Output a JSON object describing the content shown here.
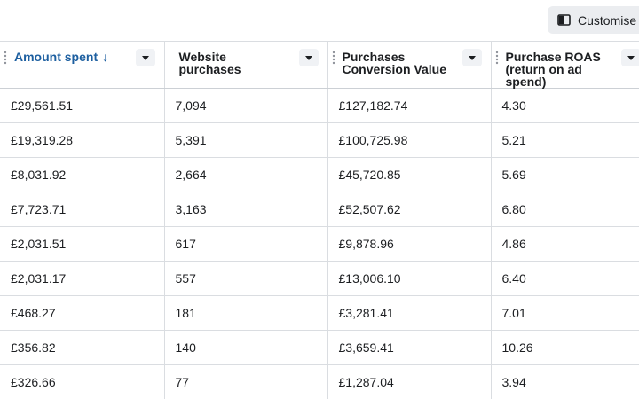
{
  "toolbar": {
    "customise_label": "Customise",
    "customise_icon": "columns-icon"
  },
  "table": {
    "columns": [
      {
        "label": "Amount spent",
        "sort_indicator": "↓",
        "sorted": true
      },
      {
        "label": "Website purchases"
      },
      {
        "label_line1": "Purchases",
        "label_line2": "Conversion Value"
      },
      {
        "label_line1": "Purchase ROAS",
        "label_line2": "(return on ad spend)"
      }
    ],
    "rows": [
      [
        "£29,561.51",
        "7,094",
        "£127,182.74",
        "4.30"
      ],
      [
        "£19,319.28",
        "5,391",
        "£100,725.98",
        "5.21"
      ],
      [
        "£8,031.92",
        "2,664",
        "£45,720.85",
        "5.69"
      ],
      [
        "£7,723.71",
        "3,163",
        "£52,507.62",
        "6.80"
      ],
      [
        "£2,031.51",
        "617",
        "£9,878.96",
        "4.86"
      ],
      [
        "£2,031.17",
        "557",
        "£13,006.10",
        "6.40"
      ],
      [
        "£468.27",
        "181",
        "£3,281.41",
        "7.01"
      ],
      [
        "£356.82",
        "140",
        "£3,659.41",
        "10.26"
      ],
      [
        "£326.66",
        "77",
        "£1,287.04",
        "3.94"
      ]
    ]
  },
  "colors": {
    "accent": "#1d5fa0",
    "border": "#dadde1",
    "button_bg": "#ebedf0"
  }
}
